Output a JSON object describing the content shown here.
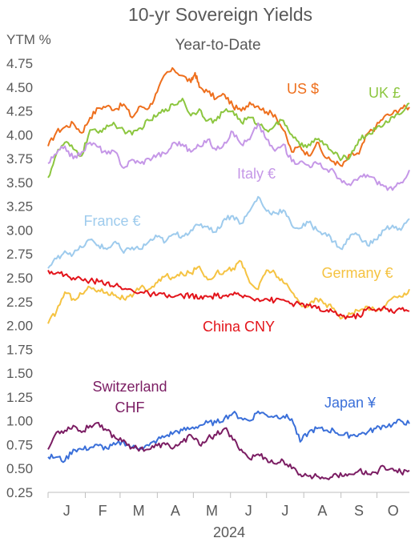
{
  "chart_data": {
    "type": "line",
    "title": "10-yr Sovereign Yields",
    "subtitle": "Year-to-Date",
    "ylabel": "YTM %",
    "xlabel": "2024",
    "ylim": [
      0.25,
      4.75
    ],
    "yticks": [
      "4.75",
      "4.50",
      "4.25",
      "4.00",
      "3.75",
      "3.50",
      "3.25",
      "3.00",
      "2.75",
      "2.50",
      "2.25",
      "2.00",
      "1.75",
      "1.50",
      "1.25",
      "1.00",
      "0.75",
      "0.50",
      "0.25"
    ],
    "xlim": [
      0,
      43
    ],
    "months": [
      "J",
      "F",
      "M",
      "A",
      "M",
      "J",
      "J",
      "A",
      "S",
      "O"
    ],
    "month_ticks": [
      0,
      4.43,
      8.57,
      13,
      17.29,
      21.71,
      26,
      30.43,
      34.86,
      39.14
    ],
    "grid": false,
    "legend": "inline labels next to each series",
    "series": [
      {
        "name": "US $",
        "color": "#ee6f1d",
        "x": [
          0,
          1,
          2,
          3,
          4,
          5,
          6,
          7,
          8,
          9,
          10,
          11,
          12,
          13,
          14,
          15,
          16,
          17,
          17.5,
          18,
          19,
          20,
          21,
          22,
          23,
          24,
          25,
          26,
          27,
          28,
          29,
          30,
          31,
          32,
          33,
          34,
          35,
          36,
          37,
          38,
          39,
          40,
          41,
          42,
          43
        ],
        "y": [
          3.88,
          4.03,
          4.08,
          4.12,
          4.02,
          4.18,
          4.28,
          4.3,
          4.27,
          4.32,
          4.18,
          4.3,
          4.28,
          4.45,
          4.64,
          4.68,
          4.62,
          4.55,
          4.65,
          4.5,
          4.45,
          4.38,
          4.42,
          4.3,
          4.25,
          4.34,
          4.3,
          4.24,
          4.21,
          4.05,
          3.82,
          3.88,
          3.78,
          3.92,
          3.76,
          3.72,
          3.67,
          3.79,
          3.8,
          4.01,
          4.08,
          4.19,
          4.22,
          4.28,
          4.29
        ]
      },
      {
        "name": "UK £",
        "color": "#8cc63f",
        "x": [
          0,
          1,
          2,
          3,
          4,
          5,
          6,
          7,
          8,
          9,
          10,
          11,
          12,
          13,
          14,
          15,
          16,
          17,
          18,
          19,
          20,
          21,
          22,
          23,
          24,
          25,
          26,
          27,
          28,
          29,
          30,
          31,
          32,
          33,
          34,
          35,
          36,
          37,
          38,
          39,
          40,
          41,
          42,
          43
        ],
        "y": [
          3.55,
          3.8,
          3.92,
          3.85,
          3.78,
          4.05,
          4.02,
          4.1,
          4.1,
          4.05,
          4.0,
          4.07,
          4.15,
          4.2,
          4.27,
          4.31,
          4.38,
          4.2,
          4.27,
          4.15,
          4.15,
          4.25,
          4.25,
          4.13,
          4.18,
          4.12,
          4.05,
          4.1,
          4.15,
          4.0,
          3.88,
          3.9,
          3.95,
          3.9,
          3.8,
          3.75,
          3.78,
          3.95,
          4.0,
          4.06,
          4.11,
          4.19,
          4.22,
          4.33
        ]
      },
      {
        "name": "Italy €",
        "color": "#c597e7",
        "x": [
          0,
          1,
          2,
          3,
          4,
          5,
          6,
          7,
          8,
          9,
          10,
          11,
          12,
          13,
          14,
          15,
          16,
          17,
          18,
          19,
          20,
          21,
          22,
          23,
          24,
          25,
          26,
          27,
          28,
          29,
          30,
          31,
          32,
          33,
          34,
          35,
          36,
          37,
          38,
          39,
          40,
          41,
          42,
          43
        ],
        "y": [
          3.7,
          3.8,
          3.88,
          3.75,
          3.82,
          3.92,
          3.87,
          3.8,
          3.82,
          3.65,
          3.74,
          3.7,
          3.75,
          3.79,
          3.8,
          3.92,
          3.9,
          3.82,
          3.88,
          3.95,
          3.84,
          3.92,
          4.03,
          3.9,
          3.95,
          4.12,
          3.95,
          3.83,
          3.9,
          3.72,
          3.72,
          3.68,
          3.7,
          3.64,
          3.62,
          3.5,
          3.47,
          3.55,
          3.58,
          3.52,
          3.46,
          3.42,
          3.5,
          3.63
        ]
      },
      {
        "name": "France €",
        "color": "#9ecbed",
        "x": [
          0,
          1,
          2,
          3,
          4,
          5,
          6,
          7,
          8,
          9,
          10,
          11,
          12,
          13,
          14,
          15,
          16,
          17,
          18,
          19,
          20,
          21,
          22,
          23,
          24,
          25,
          26,
          27,
          28,
          29,
          30,
          31,
          32,
          33,
          34,
          35,
          36,
          37,
          38,
          39,
          40,
          41,
          42,
          43
        ],
        "y": [
          2.6,
          2.7,
          2.78,
          2.75,
          2.82,
          2.9,
          2.84,
          2.8,
          2.88,
          2.76,
          2.82,
          2.8,
          2.88,
          2.93,
          2.88,
          2.96,
          2.94,
          3.0,
          3.05,
          3.04,
          2.98,
          3.12,
          3.15,
          3.07,
          3.2,
          3.35,
          3.2,
          3.18,
          3.21,
          3.05,
          3.02,
          3.08,
          3.0,
          2.97,
          2.88,
          2.8,
          2.95,
          2.95,
          2.84,
          2.9,
          3.0,
          3.05,
          3.0,
          3.12
        ]
      },
      {
        "name": "Germany €",
        "color": "#f5c342",
        "x": [
          0,
          1,
          2,
          3,
          4,
          5,
          6,
          7,
          8,
          9,
          10,
          11,
          12,
          13,
          14,
          15,
          16,
          17,
          18,
          19,
          20,
          21,
          22,
          23,
          24,
          25,
          26,
          27,
          28,
          29,
          30,
          31,
          32,
          33,
          34,
          35,
          36,
          37,
          38,
          39,
          40,
          41,
          42,
          43
        ],
        "y": [
          2.02,
          2.15,
          2.35,
          2.28,
          2.33,
          2.4,
          2.37,
          2.35,
          2.32,
          2.28,
          2.3,
          2.4,
          2.38,
          2.45,
          2.52,
          2.5,
          2.54,
          2.55,
          2.62,
          2.48,
          2.55,
          2.57,
          2.6,
          2.67,
          2.45,
          2.38,
          2.58,
          2.55,
          2.45,
          2.35,
          2.23,
          2.2,
          2.28,
          2.23,
          2.18,
          2.08,
          2.12,
          2.15,
          2.2,
          2.15,
          2.2,
          2.29,
          2.3,
          2.38
        ]
      },
      {
        "name": "China CNY",
        "color": "#e3141b",
        "x": [
          0,
          1,
          2,
          3,
          4,
          5,
          6,
          7,
          8,
          9,
          10,
          11,
          12,
          13,
          14,
          15,
          16,
          17,
          18,
          19,
          20,
          21,
          22,
          23,
          24,
          25,
          26,
          27,
          28,
          29,
          30,
          31,
          32,
          33,
          34,
          35,
          36,
          37,
          38,
          39,
          40,
          41,
          42,
          43
        ],
        "y": [
          2.58,
          2.55,
          2.53,
          2.5,
          2.48,
          2.47,
          2.46,
          2.45,
          2.42,
          2.38,
          2.37,
          2.35,
          2.33,
          2.32,
          2.31,
          2.3,
          2.31,
          2.32,
          2.28,
          2.3,
          2.31,
          2.31,
          2.32,
          2.31,
          2.3,
          2.28,
          2.28,
          2.26,
          2.27,
          2.23,
          2.22,
          2.21,
          2.18,
          2.15,
          2.14,
          2.1,
          2.09,
          2.1,
          2.18,
          2.15,
          2.2,
          2.14,
          2.17,
          2.15
        ]
      },
      {
        "name": "Japan ¥",
        "color": "#3a6fd9",
        "x": [
          0,
          1,
          2,
          3,
          4,
          5,
          6,
          7,
          8,
          9,
          10,
          11,
          12,
          13,
          14,
          15,
          16,
          17,
          18,
          19,
          20,
          21,
          22,
          23,
          24,
          25,
          26,
          27,
          28,
          29,
          30,
          31,
          32,
          33,
          34,
          35,
          36,
          37,
          38,
          39,
          40,
          41,
          42,
          43
        ],
        "y": [
          0.62,
          0.62,
          0.58,
          0.7,
          0.7,
          0.72,
          0.74,
          0.71,
          0.75,
          0.78,
          0.72,
          0.72,
          0.74,
          0.8,
          0.84,
          0.88,
          0.9,
          0.92,
          0.95,
          0.98,
          0.98,
          1.03,
          1.08,
          1.03,
          1.0,
          1.1,
          1.06,
          1.05,
          1.05,
          1.02,
          0.78,
          0.88,
          0.92,
          0.9,
          0.9,
          0.85,
          0.85,
          0.86,
          0.88,
          0.92,
          0.95,
          0.96,
          1.0,
          0.97
        ]
      },
      {
        "name": "Switzerland\nCHF",
        "color": "#7b1d63",
        "x": [
          0,
          1,
          2,
          3,
          4,
          5,
          6,
          7,
          8,
          9,
          10,
          11,
          12,
          13,
          14,
          15,
          16,
          17,
          18,
          19,
          20,
          21,
          22,
          23,
          24,
          25,
          26,
          27,
          28,
          29,
          30,
          31,
          32,
          33,
          34,
          35,
          36,
          37,
          38,
          39,
          40,
          41,
          42,
          43
        ],
        "y": [
          0.7,
          0.88,
          0.9,
          0.95,
          0.88,
          0.95,
          0.98,
          0.9,
          0.82,
          0.8,
          0.72,
          0.71,
          0.7,
          0.74,
          0.75,
          0.72,
          0.78,
          0.85,
          0.75,
          0.82,
          0.85,
          0.92,
          0.8,
          0.7,
          0.6,
          0.65,
          0.6,
          0.55,
          0.58,
          0.5,
          0.44,
          0.42,
          0.42,
          0.4,
          0.44,
          0.42,
          0.44,
          0.48,
          0.44,
          0.46,
          0.52,
          0.5,
          0.46,
          0.48
        ]
      }
    ],
    "labels": [
      {
        "text": "US $",
        "color": "#ee6f1d"
      },
      {
        "text": "UK £",
        "color": "#8cc63f"
      },
      {
        "text": "Italy €",
        "color": "#c597e7"
      },
      {
        "text": "France €",
        "color": "#9ecbed"
      },
      {
        "text": "Germany €",
        "color": "#f5c342"
      },
      {
        "text": "China CNY",
        "color": "#e3141b"
      },
      {
        "text": "Japan ¥",
        "color": "#3a6fd9"
      },
      {
        "text": "Switzerland",
        "color": "#7b1d63"
      },
      {
        "text": "CHF",
        "color": "#7b1d63"
      }
    ]
  }
}
